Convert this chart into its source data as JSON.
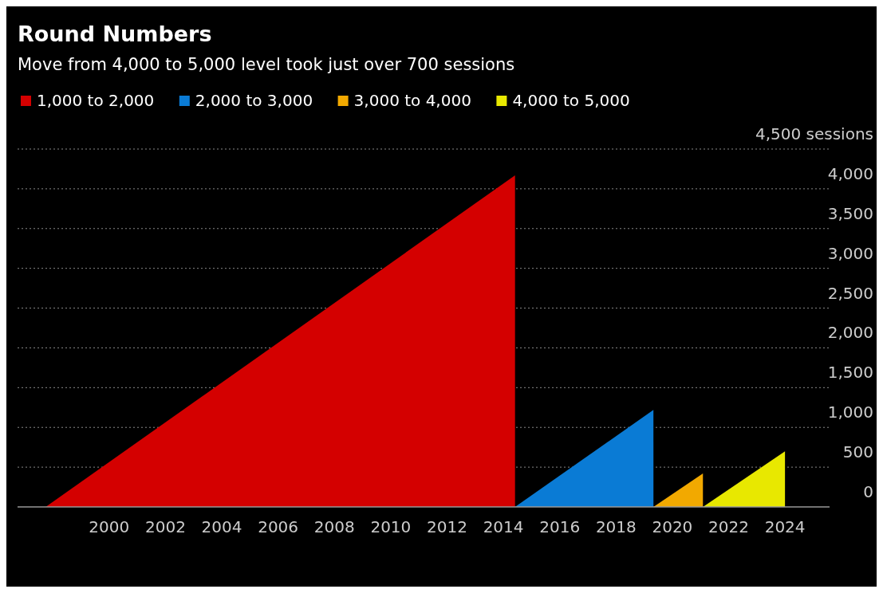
{
  "chart_data": {
    "type": "area",
    "title": "Round Numbers",
    "subtitle": "Move from 4,000 to 5,000 level took just over 700 sessions",
    "series": [
      {
        "name": "1,000 to 2,000",
        "color": "#d40000",
        "x": [
          "1997-10",
          "2014-06",
          "2014-06"
        ],
        "values": [
          0,
          4170,
          0
        ]
      },
      {
        "name": "2,000 to 3,000",
        "color": "#0a7bd5",
        "x": [
          "2014-06",
          "2019-05",
          "2019-05"
        ],
        "values": [
          0,
          1220,
          0
        ]
      },
      {
        "name": "3,000 to 4,000",
        "color": "#f2a900",
        "x": [
          "2019-05",
          "2021-02",
          "2021-02"
        ],
        "values": [
          0,
          420,
          0
        ]
      },
      {
        "name": "4,000 to 5,000",
        "color": "#e8e800",
        "x": [
          "2021-02",
          "2024-01",
          "2024-01"
        ],
        "values": [
          0,
          700,
          0
        ]
      }
    ],
    "xlim": [
      "1996-10",
      "2025-08"
    ],
    "xticks": [
      {
        "value": "2000",
        "label": "2000"
      },
      {
        "value": "2002",
        "label": "2002"
      },
      {
        "value": "2004",
        "label": "2004"
      },
      {
        "value": "2006",
        "label": "2006"
      },
      {
        "value": "2008",
        "label": "2008"
      },
      {
        "value": "2010",
        "label": "2010"
      },
      {
        "value": "2012",
        "label": "2012"
      },
      {
        "value": "2014",
        "label": "2014"
      },
      {
        "value": "2016",
        "label": "2016"
      },
      {
        "value": "2018",
        "label": "2018"
      },
      {
        "value": "2020",
        "label": "2020"
      },
      {
        "value": "2022",
        "label": "2022"
      },
      {
        "value": "2024",
        "label": "2024"
      }
    ],
    "ylim": [
      0,
      4500
    ],
    "yticks": [
      {
        "value": 0,
        "label": "0"
      },
      {
        "value": 500,
        "label": "500"
      },
      {
        "value": 1000,
        "label": "1,000"
      },
      {
        "value": 1500,
        "label": "1,500"
      },
      {
        "value": 2000,
        "label": "2,000"
      },
      {
        "value": 2500,
        "label": "2,500"
      },
      {
        "value": 3000,
        "label": "3,000"
      },
      {
        "value": 3500,
        "label": "3,500"
      },
      {
        "value": 4000,
        "label": "4,000"
      },
      {
        "value": 4500,
        "label": "4,500 sessions"
      }
    ],
    "grid": "y",
    "legend": "top left",
    "marker": "none"
  }
}
